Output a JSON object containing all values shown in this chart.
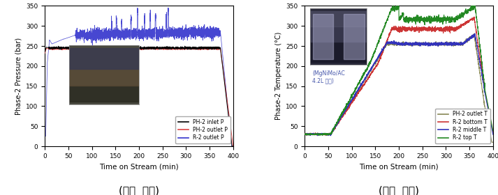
{
  "left": {
    "ylabel": "Phase-2 Pressure (bar)",
    "xlabel": "Time on Stream (min)",
    "title": "(압력  변화)",
    "ylim": [
      0,
      350
    ],
    "xlim": [
      0,
      400
    ],
    "yticks": [
      0,
      50,
      100,
      150,
      200,
      250,
      300,
      350
    ],
    "xticks": [
      0,
      50,
      100,
      150,
      200,
      250,
      300,
      350,
      400
    ],
    "legend": [
      "PH-2 inlet P",
      "PH-2 outlet P",
      "R-2 outlet P"
    ],
    "colors": [
      "black",
      "#dd4444",
      "#3333cc"
    ]
  },
  "right": {
    "ylabel": "Phase-2 Temperature (°C)",
    "xlabel": "Time on Stream (min)",
    "title": "(온도  변화)",
    "ylim": [
      0,
      350
    ],
    "xlim": [
      0,
      400
    ],
    "yticks": [
      0,
      50,
      100,
      150,
      200,
      250,
      300,
      350
    ],
    "xticks": [
      0,
      50,
      100,
      150,
      200,
      250,
      300,
      350,
      400
    ],
    "legend": [
      "PH-2 outlet T",
      "R-2 bottom T",
      "R-2 middle T",
      "R-2 top T"
    ],
    "colors": [
      "#888855",
      "#cc3333",
      "#3333bb",
      "#228822"
    ],
    "annotation": "(MgNiMo/AC\n4.2L 투입)"
  }
}
